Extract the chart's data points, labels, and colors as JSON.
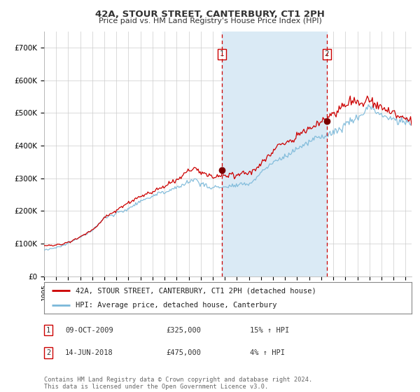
{
  "title": "42A, STOUR STREET, CANTERBURY, CT1 2PH",
  "subtitle": "Price paid vs. HM Land Registry's House Price Index (HPI)",
  "x_start_year": 1995,
  "x_end_year": 2025,
  "ylim": [
    0,
    750000
  ],
  "yticks": [
    0,
    100000,
    200000,
    300000,
    400000,
    500000,
    600000,
    700000
  ],
  "ytick_labels": [
    "£0",
    "£100K",
    "£200K",
    "£300K",
    "£400K",
    "£500K",
    "£600K",
    "£700K"
  ],
  "sale1_year": 2009.77,
  "sale1_price": 325000,
  "sale2_year": 2018.45,
  "sale2_price": 475000,
  "legend_line1": "42A, STOUR STREET, CANTERBURY, CT1 2PH (detached house)",
  "legend_line2": "HPI: Average price, detached house, Canterbury",
  "table_row1": [
    "1",
    "09-OCT-2009",
    "£325,000",
    "15% ↑ HPI"
  ],
  "table_row2": [
    "2",
    "14-JUN-2018",
    "£475,000",
    "4% ↑ HPI"
  ],
  "footnote": "Contains HM Land Registry data © Crown copyright and database right 2024.\nThis data is licensed under the Open Government Licence v3.0.",
  "line_color_hpi": "#7ab8d9",
  "line_color_price": "#cc0000",
  "shading_color": "#daeaf5",
  "grid_color": "#cccccc",
  "bg_color": "#ffffff",
  "marker_color": "#7a0000"
}
